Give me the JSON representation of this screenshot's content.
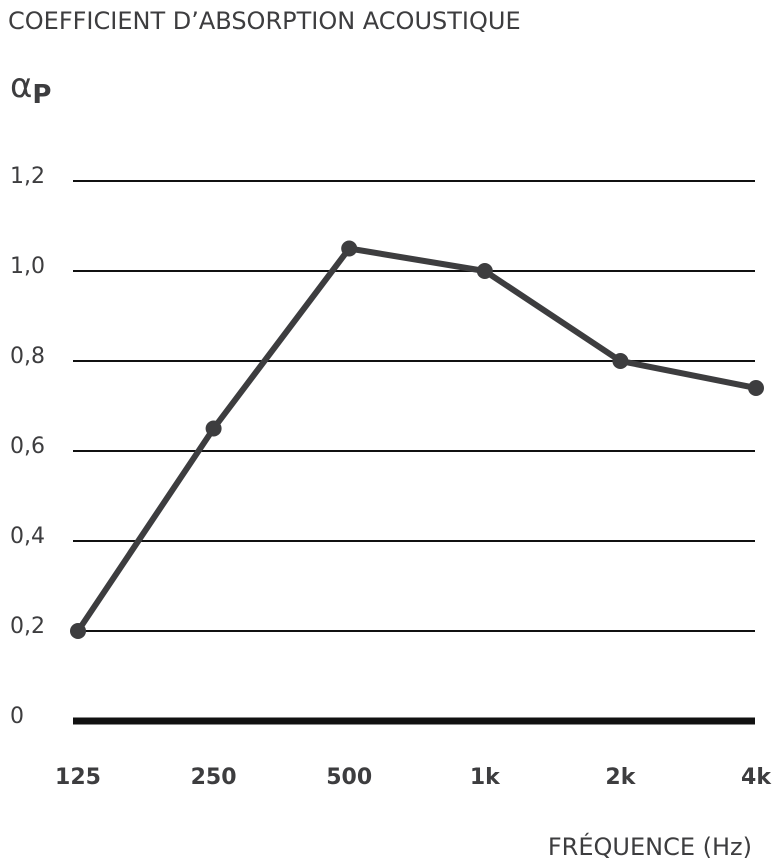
{
  "chart_data": {
    "type": "line",
    "title": "COEFFICIENT D’ABSORPTION ACOUSTIQUE",
    "y_label": {
      "symbol": "α",
      "subscript": "P"
    },
    "x_label": "FRÉQUENCE (Hz)",
    "categories": [
      "125",
      "250",
      "500",
      "1k",
      "2k",
      "4k"
    ],
    "values": [
      0.2,
      0.65,
      1.05,
      1.0,
      0.8,
      0.74
    ],
    "color": "#3d3d3f",
    "ylim": [
      0,
      1.2
    ],
    "yticks": [
      0,
      {
        "value": 0.2,
        "label": "0,2"
      },
      {
        "value": 0.4,
        "label": "0,4"
      },
      {
        "value": 0.6,
        "label": "0,6"
      },
      {
        "value": 0.8,
        "label": "0,8"
      },
      {
        "value": 1.0,
        "label": "1,0"
      },
      {
        "value": 1.2,
        "label": "1,2"
      }
    ],
    "grid": true
  }
}
